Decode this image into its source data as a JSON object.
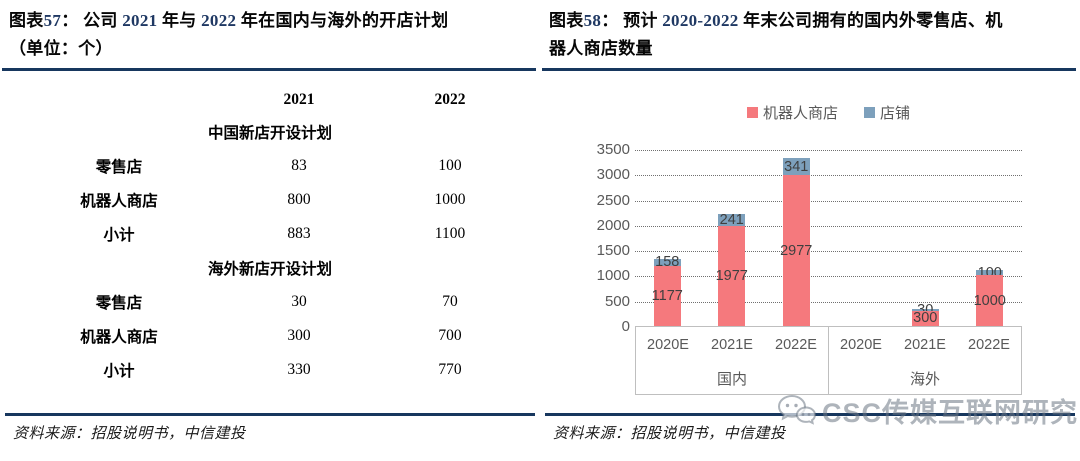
{
  "left_panel": {
    "title_line1": [
      {
        "t": "图表",
        "c": "t"
      },
      {
        "t": "57",
        "c": "n"
      },
      {
        "t": "：  公司 ",
        "c": "t"
      },
      {
        "t": "2021",
        "c": "n"
      },
      {
        "t": " 年与 ",
        "c": "t"
      },
      {
        "t": "2022",
        "c": "n"
      },
      {
        "t": " 年在国内与海外的开店计划",
        "c": "t"
      }
    ],
    "title_line2": [
      {
        "t": "（单位：个）",
        "c": "t"
      }
    ],
    "table": {
      "col_headers": [
        "2021",
        "2022"
      ],
      "sections": [
        {
          "header": "中国新店开设计划",
          "rows": [
            [
              "零售店",
              "83",
              "100"
            ],
            [
              "机器人商店",
              "800",
              "1000"
            ],
            [
              "小计",
              "883",
              "1100"
            ]
          ]
        },
        {
          "header": "海外新店开设计划",
          "rows": [
            [
              "零售店",
              "30",
              "70"
            ],
            [
              "机器人商店",
              "300",
              "700"
            ],
            [
              "小计",
              "330",
              "770"
            ]
          ]
        }
      ]
    },
    "source": "资料来源：招股说明书，中信建投"
  },
  "right_panel": {
    "title_line1": [
      {
        "t": "图表",
        "c": "t"
      },
      {
        "t": "58",
        "c": "n"
      },
      {
        "t": "：  预计 ",
        "c": "t"
      },
      {
        "t": "2020-2022",
        "c": "n"
      },
      {
        "t": " 年末公司拥有的国内外零售店、机",
        "c": "t"
      }
    ],
    "title_line2": [
      {
        "t": "器人商店数量",
        "c": "t"
      }
    ],
    "source": "资料来源：招股说明书，中信建投",
    "watermark_text": "CSC传媒互联网研究",
    "watermark_icon": "wechat-chat-bubbles-icon"
  },
  "chart_data": {
    "type": "bar",
    "stacked": true,
    "title": "预计 2020-2022 年末公司拥有的国内外零售店、机器人商店数量",
    "groups": [
      "国内",
      "海外"
    ],
    "categories": [
      "2020E",
      "2021E",
      "2022E",
      "2020E",
      "2021E",
      "2022E"
    ],
    "series": [
      {
        "name": "机器人商店",
        "slug": "robot-shops",
        "color": "#f5797d",
        "values": [
          1177,
          1977,
          2977,
          0,
          300,
          1000
        ]
      },
      {
        "name": "店铺",
        "slug": "retail-shops",
        "color": "#7da0bc",
        "values": [
          158,
          241,
          341,
          0,
          30,
          100
        ]
      }
    ],
    "ylim": [
      0,
      3500
    ],
    "yticks": [
      0,
      500,
      1000,
      1500,
      2000,
      2500,
      3000,
      3500
    ],
    "legend_position": "top",
    "grid": "horizontal-dotted"
  },
  "colors": {
    "accent_rule": "#17375e",
    "title_number": "#1f3863",
    "robot_shops_bar": "#f5797d",
    "retail_shops_bar": "#7da0bc"
  }
}
